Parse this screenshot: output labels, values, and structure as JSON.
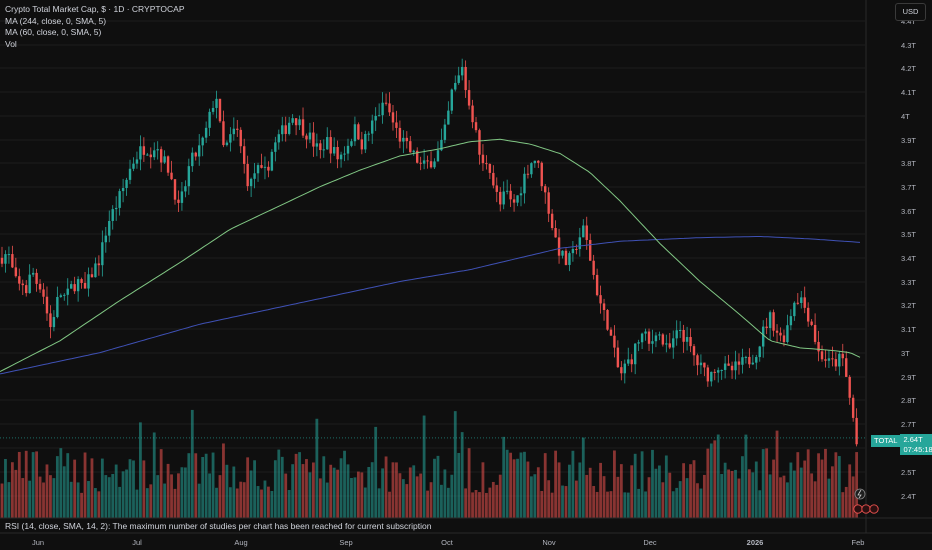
{
  "legend": {
    "title": "Crypto Total Market Cap, $ · 1D · CRYPTOCAP",
    "ma244": "MA (244, close, 0, SMA, 5)",
    "ma60": "MA (60, close, 0, SMA, 5)",
    "vol": "Vol"
  },
  "currency_label": "USD",
  "rsi_note": "RSI (14, close, SMA, 14, 2): The maximum number of studies per chart has been reached for current subscription",
  "price_tag": {
    "name": "TOTAL",
    "price": "2.64T",
    "countdown": "07:45:18"
  },
  "colors": {
    "background": "#0f0f0f",
    "up": "#26a69a",
    "down": "#ef5350",
    "ma244": "#3f51b5",
    "ma60": "#81c784",
    "grid": "#1c1c1c",
    "axis_text": "#b2b5be"
  },
  "chart_data": {
    "type": "candlestick",
    "title": "Crypto Total Market Cap, $ · 1D · CRYPTOCAP",
    "y_unit": "USD (trillions)",
    "y_ticks": [
      "2.4T",
      "2.5T",
      "2.6T",
      "2.7T",
      "2.8T",
      "2.9T",
      "3T",
      "3.1T",
      "3.2T",
      "3.3T",
      "3.4T",
      "3.5T",
      "3.6T",
      "3.7T",
      "3.8T",
      "3.9T",
      "4T",
      "4.1T",
      "4.2T",
      "4.3T",
      "4.4T"
    ],
    "x_ticks": [
      "Jun",
      "Jul",
      "Aug",
      "Sep",
      "Oct",
      "Nov",
      "Dec",
      "2026",
      "Feb"
    ],
    "close_anchors": [
      [
        0,
        3.4
      ],
      [
        8,
        3.42
      ],
      [
        14,
        3.32
      ],
      [
        18,
        3.27
      ],
      [
        22,
        3.3
      ],
      [
        26,
        3.26
      ],
      [
        32,
        3.35
      ],
      [
        36,
        3.3
      ],
      [
        42,
        3.28
      ],
      [
        50,
        3.1
      ],
      [
        56,
        3.2
      ],
      [
        60,
        3.25
      ],
      [
        66,
        3.23
      ],
      [
        72,
        3.28
      ],
      [
        78,
        3.3
      ],
      [
        84,
        3.25
      ],
      [
        90,
        3.32
      ],
      [
        100,
        3.4
      ],
      [
        108,
        3.55
      ],
      [
        116,
        3.62
      ],
      [
        124,
        3.7
      ],
      [
        132,
        3.8
      ],
      [
        140,
        3.85
      ],
      [
        146,
        3.87
      ],
      [
        150,
        3.85
      ],
      [
        156,
        3.88
      ],
      [
        162,
        3.82
      ],
      [
        168,
        3.78
      ],
      [
        174,
        3.7
      ],
      [
        178,
        3.6
      ],
      [
        184,
        3.68
      ],
      [
        190,
        3.8
      ],
      [
        198,
        3.85
      ],
      [
        204,
        3.9
      ],
      [
        210,
        4.0
      ],
      [
        216,
        4.1
      ],
      [
        220,
        3.95
      ],
      [
        224,
        3.85
      ],
      [
        230,
        3.9
      ],
      [
        236,
        3.95
      ],
      [
        240,
        3.88
      ],
      [
        246,
        3.75
      ],
      [
        250,
        3.7
      ],
      [
        256,
        3.78
      ],
      [
        262,
        3.75
      ],
      [
        266,
        3.76
      ],
      [
        272,
        3.85
      ],
      [
        280,
        3.92
      ],
      [
        286,
        3.95
      ],
      [
        292,
        4.0
      ],
      [
        298,
        3.98
      ],
      [
        302,
        3.95
      ],
      [
        308,
        3.92
      ],
      [
        314,
        3.88
      ],
      [
        320,
        3.84
      ],
      [
        326,
        3.9
      ],
      [
        332,
        3.86
      ],
      [
        338,
        3.82
      ],
      [
        344,
        3.85
      ],
      [
        350,
        3.9
      ],
      [
        356,
        3.95
      ],
      [
        362,
        3.88
      ],
      [
        368,
        3.92
      ],
      [
        374,
        3.98
      ],
      [
        380,
        4.02
      ],
      [
        386,
        4.05
      ],
      [
        392,
        3.98
      ],
      [
        398,
        3.92
      ],
      [
        404,
        3.88
      ],
      [
        410,
        3.85
      ],
      [
        416,
        3.82
      ],
      [
        422,
        3.78
      ],
      [
        428,
        3.8
      ],
      [
        434,
        3.82
      ],
      [
        440,
        3.86
      ],
      [
        446,
        3.95
      ],
      [
        452,
        4.1
      ],
      [
        458,
        4.15
      ],
      [
        462,
        4.22
      ],
      [
        466,
        4.1
      ],
      [
        470,
        4.05
      ],
      [
        476,
        3.92
      ],
      [
        482,
        3.78
      ],
      [
        488,
        3.82
      ],
      [
        494,
        3.7
      ],
      [
        500,
        3.62
      ],
      [
        506,
        3.68
      ],
      [
        512,
        3.62
      ],
      [
        518,
        3.66
      ],
      [
        524,
        3.74
      ],
      [
        530,
        3.8
      ],
      [
        536,
        3.82
      ],
      [
        542,
        3.72
      ],
      [
        548,
        3.62
      ],
      [
        554,
        3.5
      ],
      [
        560,
        3.42
      ],
      [
        566,
        3.38
      ],
      [
        572,
        3.4
      ],
      [
        578,
        3.48
      ],
      [
        584,
        3.52
      ],
      [
        590,
        3.4
      ],
      [
        596,
        3.28
      ],
      [
        602,
        3.18
      ],
      [
        608,
        3.12
      ],
      [
        614,
        3.0
      ],
      [
        620,
        2.9
      ],
      [
        626,
        2.95
      ],
      [
        632,
        2.98
      ],
      [
        638,
        3.05
      ],
      [
        644,
        3.08
      ],
      [
        650,
        3.02
      ],
      [
        656,
        3.1
      ],
      [
        662,
        3.05
      ],
      [
        668,
        3.0
      ],
      [
        674,
        3.05
      ],
      [
        680,
        3.1
      ],
      [
        686,
        3.05
      ],
      [
        692,
        3.0
      ],
      [
        698,
        2.95
      ],
      [
        704,
        2.92
      ],
      [
        710,
        2.9
      ],
      [
        716,
        2.95
      ],
      [
        722,
        2.94
      ],
      [
        728,
        2.92
      ],
      [
        734,
        2.93
      ],
      [
        740,
        2.95
      ],
      [
        746,
        2.96
      ],
      [
        752,
        2.98
      ],
      [
        758,
        3.02
      ],
      [
        764,
        3.1
      ],
      [
        770,
        3.15
      ],
      [
        776,
        3.1
      ],
      [
        782,
        3.05
      ],
      [
        788,
        3.12
      ],
      [
        794,
        3.22
      ],
      [
        800,
        3.24
      ],
      [
        806,
        3.18
      ],
      [
        812,
        3.12
      ],
      [
        818,
        3.0
      ],
      [
        824,
        2.98
      ],
      [
        830,
        2.95
      ],
      [
        836,
        2.96
      ],
      [
        842,
        2.98
      ],
      [
        846,
        2.9
      ],
      [
        850,
        2.8
      ],
      [
        854,
        2.7
      ],
      [
        857,
        2.6
      ],
      [
        860,
        2.64
      ]
    ],
    "ma244_anchors": [
      [
        0,
        2.91
      ],
      [
        100,
        3.0
      ],
      [
        200,
        3.12
      ],
      [
        300,
        3.21
      ],
      [
        400,
        3.3
      ],
      [
        470,
        3.35
      ],
      [
        520,
        3.4
      ],
      [
        560,
        3.44
      ],
      [
        620,
        3.47
      ],
      [
        700,
        3.485
      ],
      [
        760,
        3.49
      ],
      [
        810,
        3.48
      ],
      [
        860,
        3.465
      ]
    ],
    "ma60_anchors": [
      [
        0,
        2.92
      ],
      [
        60,
        3.05
      ],
      [
        120,
        3.22
      ],
      [
        180,
        3.38
      ],
      [
        230,
        3.52
      ],
      [
        280,
        3.62
      ],
      [
        320,
        3.7
      ],
      [
        360,
        3.77
      ],
      [
        400,
        3.83
      ],
      [
        440,
        3.86
      ],
      [
        470,
        3.89
      ],
      [
        500,
        3.9
      ],
      [
        530,
        3.88
      ],
      [
        560,
        3.84
      ],
      [
        590,
        3.76
      ],
      [
        620,
        3.64
      ],
      [
        660,
        3.46
      ],
      [
        700,
        3.3
      ],
      [
        740,
        3.16
      ],
      [
        770,
        3.05
      ],
      [
        800,
        3.02
      ],
      [
        830,
        3.01
      ],
      [
        850,
        3.0
      ],
      [
        860,
        2.98
      ]
    ]
  }
}
